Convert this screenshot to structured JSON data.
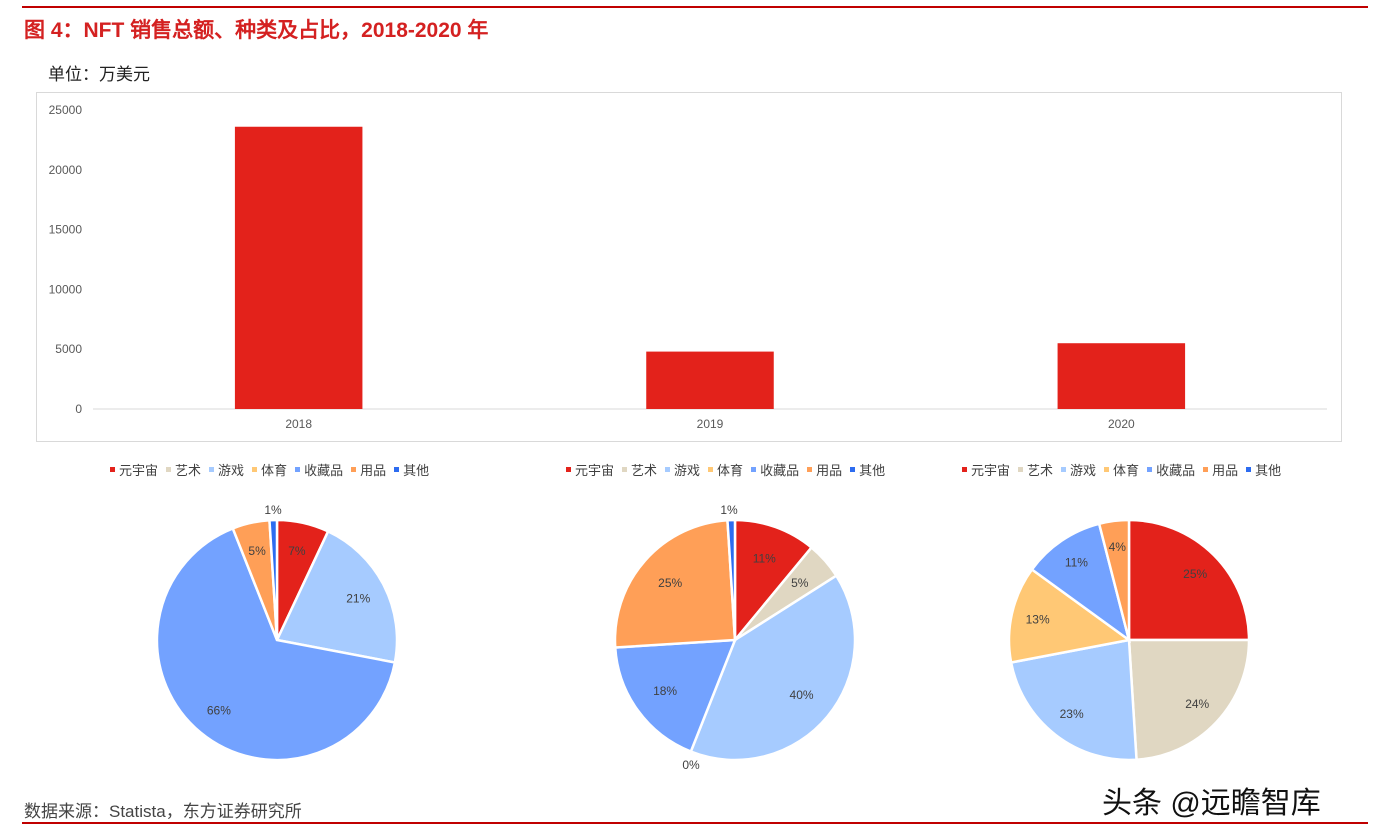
{
  "header": {
    "title": "图 4：NFT 销售总额、种类及占比，2018-2020 年",
    "unit": "单位：万美元"
  },
  "footer": {
    "source": "数据来源：Statista，东方证券研究所",
    "watermark": "头条 @远瞻智库"
  },
  "chart_data": [
    {
      "type": "bar",
      "categories": [
        "2018",
        "2019",
        "2020"
      ],
      "values": [
        23600,
        4800,
        5500
      ],
      "ylim": [
        0,
        25000
      ],
      "yticks": [
        "0",
        "5000",
        "10000",
        "15000",
        "20000",
        "25000"
      ],
      "color": "#e3221b",
      "grid": false
    },
    {
      "type": "pie",
      "legend": [
        "元宇宙",
        "艺术",
        "游戏",
        "体育",
        "收藏品",
        "用品",
        "其他"
      ],
      "legend_colors": [
        "#e3221b",
        "#e0d7c2",
        "#a6cbff",
        "#ffc875",
        "#73a2ff",
        "#ff9f57",
        "#2d6cf0"
      ],
      "labels": [
        "元宇宙",
        "游戏",
        "收藏品",
        "用品",
        "其他"
      ],
      "values": [
        7,
        21,
        66,
        5,
        1
      ],
      "value_labels": [
        "7%",
        "21%",
        "66%",
        "5%",
        "1%"
      ],
      "colors": [
        "#e3221b",
        "#a6cbff",
        "#73a2ff",
        "#ff9f57",
        "#2d6cf0"
      ]
    },
    {
      "type": "pie",
      "legend": [
        "元宇宙",
        "艺术",
        "游戏",
        "体育",
        "收藏品",
        "用品",
        "其他"
      ],
      "legend_colors": [
        "#e3221b",
        "#e0d7c2",
        "#a6cbff",
        "#ffc875",
        "#73a2ff",
        "#ff9f57",
        "#2d6cf0"
      ],
      "labels": [
        "元宇宙",
        "艺术",
        "游戏",
        "体育",
        "收藏品",
        "用品",
        "其他"
      ],
      "values": [
        11,
        5,
        40,
        0,
        18,
        25,
        1
      ],
      "value_labels": [
        "11%",
        "5%",
        "40%",
        "0%",
        "18%",
        "25%",
        "1%"
      ],
      "colors": [
        "#e3221b",
        "#e0d7c2",
        "#a6cbff",
        "#ffc875",
        "#73a2ff",
        "#ff9f57",
        "#2d6cf0"
      ]
    },
    {
      "type": "pie",
      "legend": [
        "元宇宙",
        "艺术",
        "游戏",
        "体育",
        "收藏品",
        "用品",
        "其他"
      ],
      "legend_colors": [
        "#e3221b",
        "#e0d7c2",
        "#a6cbff",
        "#ffc875",
        "#73a2ff",
        "#ff9f57",
        "#2d6cf0"
      ],
      "labels": [
        "元宇宙",
        "艺术",
        "游戏",
        "体育",
        "收藏品",
        "用品"
      ],
      "values": [
        25,
        24,
        23,
        13,
        11,
        4
      ],
      "value_labels": [
        "25%",
        "24%",
        "23%",
        "13%",
        "11%",
        "4%"
      ],
      "colors": [
        "#e3221b",
        "#e0d7c2",
        "#a6cbff",
        "#ffc875",
        "#73a2ff",
        "#ff9f57"
      ]
    }
  ]
}
